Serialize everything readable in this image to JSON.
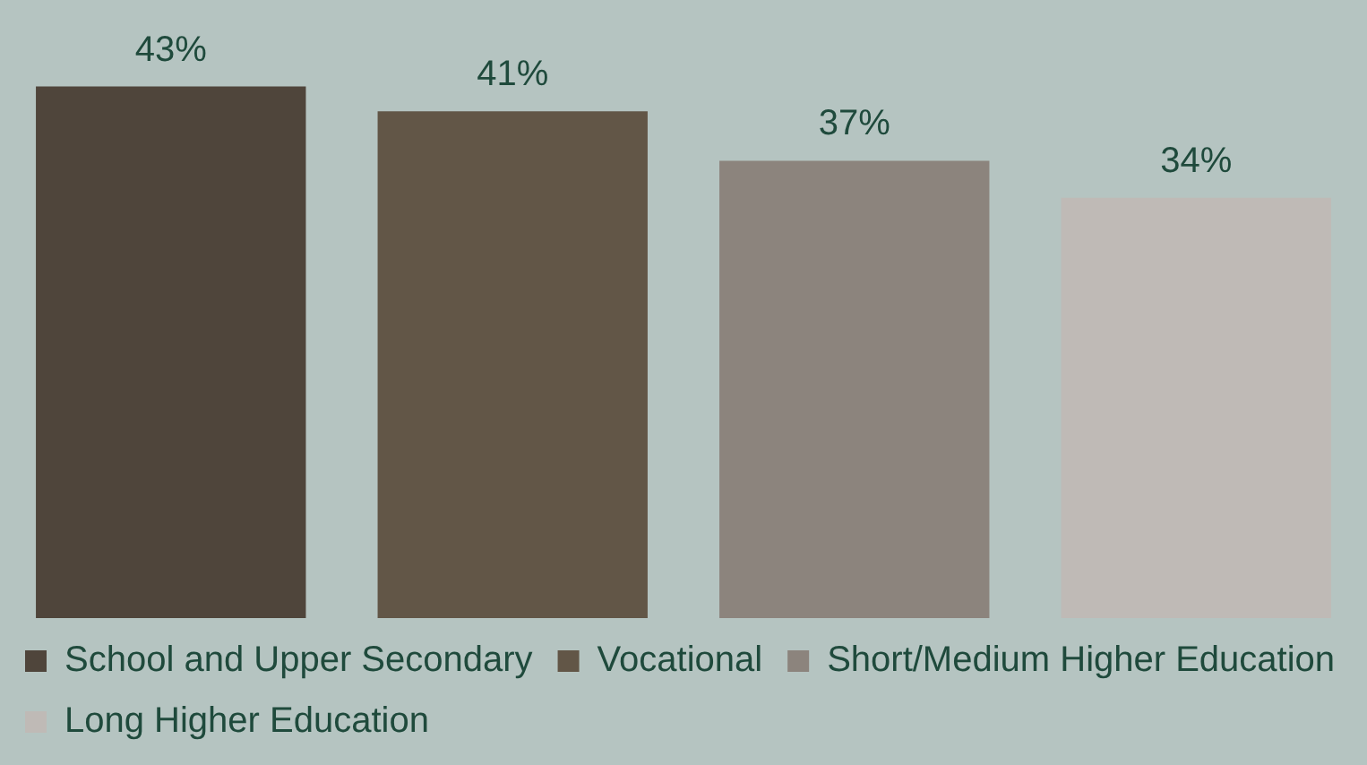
{
  "chart_data": {
    "type": "bar",
    "categories": [
      null
    ],
    "legend": "bottom",
    "series": [
      {
        "name": "School and Upper Secondary",
        "color": "#4f453b",
        "values": [
          43
        ],
        "value_labels": [
          "43%"
        ]
      },
      {
        "name": "Vocational",
        "color": "#625647",
        "values": [
          41
        ],
        "value_labels": [
          "41%"
        ]
      },
      {
        "name": "Short/Medium Higher Education",
        "color": "#8c847d",
        "values": [
          37
        ],
        "value_labels": [
          "37%"
        ]
      },
      {
        "name": "Long Higher Education",
        "color": "#bfbab6",
        "values": [
          34
        ],
        "value_labels": [
          "34%"
        ]
      }
    ]
  }
}
